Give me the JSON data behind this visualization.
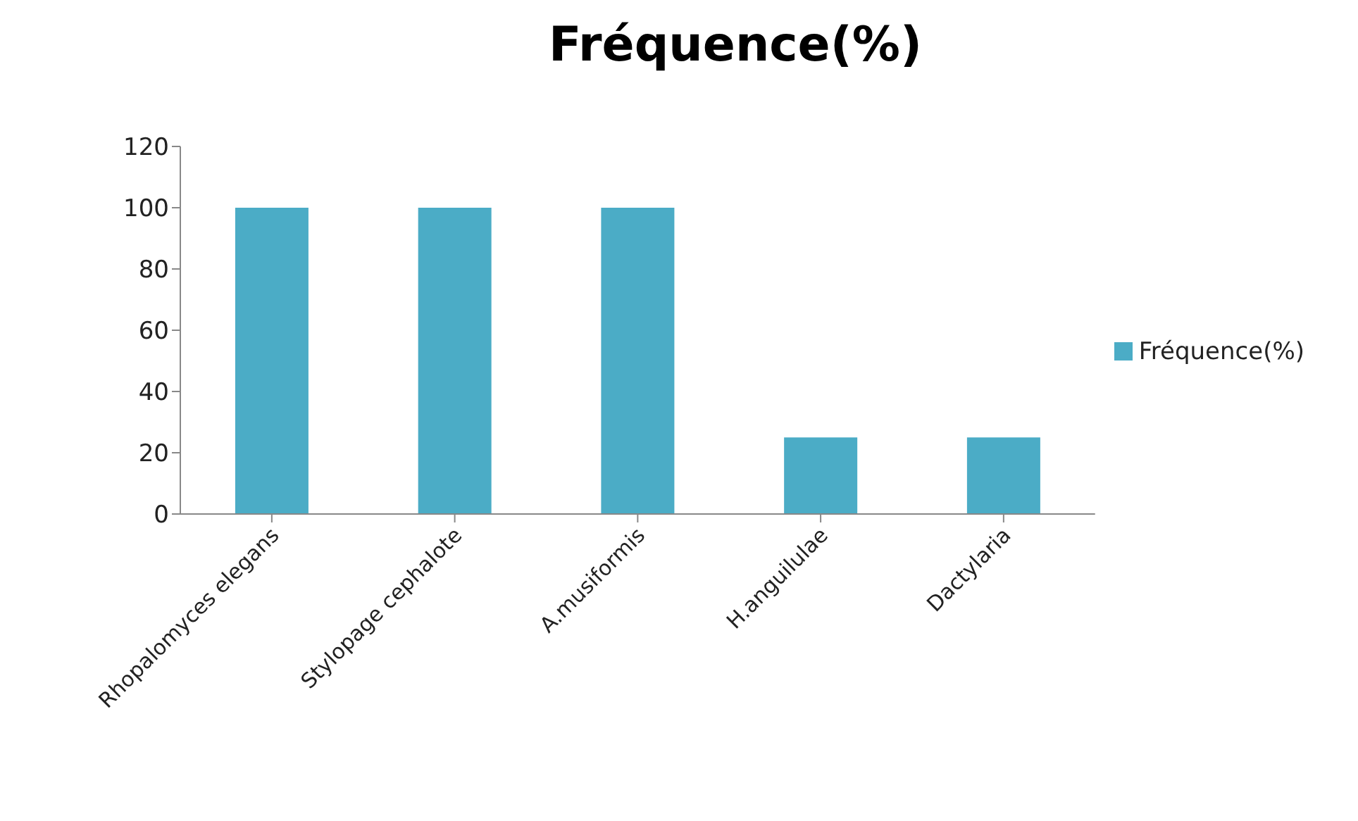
{
  "chart_data": {
    "type": "bar",
    "title": "Fréquence(%)",
    "categories": [
      "Rhopalomyces elegans",
      "Stylopage cephalote",
      "A.musiformis",
      "H.anguilulae",
      "Dactylaria"
    ],
    "series": [
      {
        "name": "Fréquence(%)",
        "color": "#4bacc6",
        "values": [
          100,
          100,
          100,
          25,
          25
        ]
      }
    ],
    "ylim": [
      0,
      120
    ],
    "yticks": [
      0,
      20,
      40,
      60,
      80,
      100,
      120
    ],
    "grid": false,
    "legend": "right"
  }
}
